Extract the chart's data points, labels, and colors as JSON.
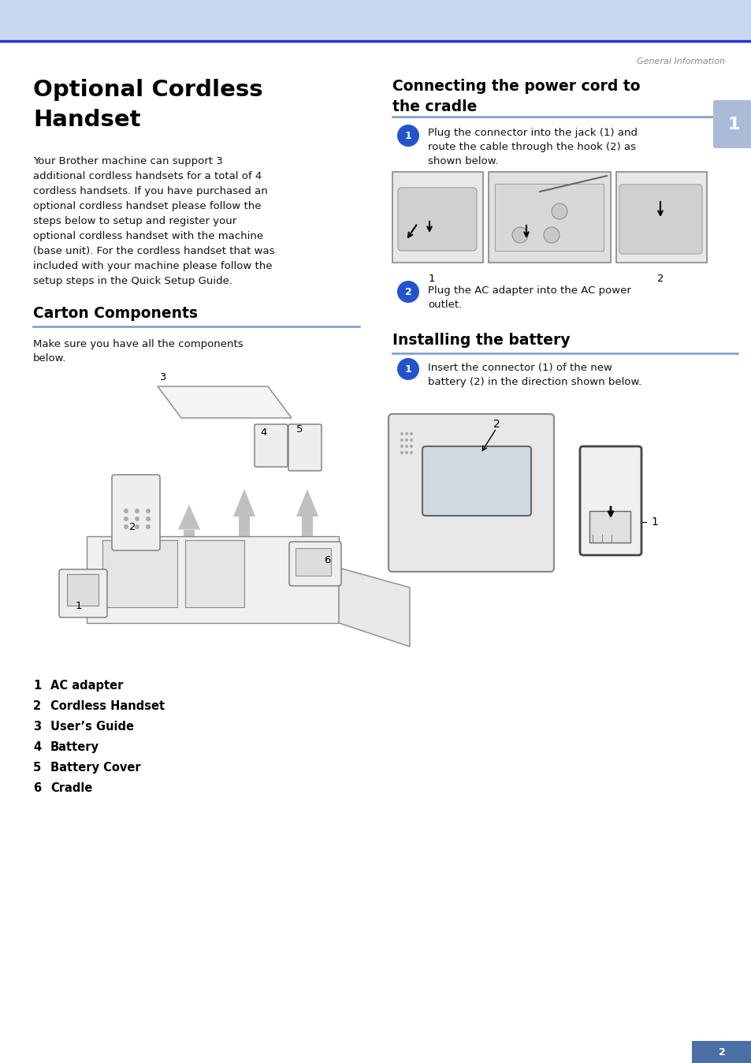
{
  "page_bg": "#ffffff",
  "header_bg": "#c8d8f0",
  "header_line_color": "#2233dd",
  "tab_bg": "#aabbd8",
  "tab_text": "1",
  "top_label": "General Information",
  "top_label_color": "#888888",
  "page_number": "2",
  "page_num_bg": "#4a6fa5",
  "left_title": "Optional Cordless\nHandset",
  "left_body": "Your Brother machine can support 3\nadditional cordless handsets for a total of 4\ncordless handsets. If you have purchased an\noptional cordless handset please follow the\nsteps below to setup and register your\noptional cordless handset with the machine\n(base unit). For the cordless handset that was\nincluded with your machine please follow the\nsetup steps in the Quick Setup Guide.",
  "carton_title": "Carton Components",
  "carton_body": "Make sure you have all the components\nbelow.",
  "carton_items": [
    [
      "1",
      "AC adapter"
    ],
    [
      "2",
      "Cordless Handset"
    ],
    [
      "3",
      "User’s Guide"
    ],
    [
      "4",
      "Battery"
    ],
    [
      "5",
      "Battery Cover"
    ],
    [
      "6",
      "Cradle"
    ]
  ],
  "right_title1": "Connecting the power cord to\nthe cradle",
  "step1_circle": "1",
  "step1_text": "Plug the connector into the jack (1) and\nroute the cable through the hook (2) as\nshown below.",
  "step2_circle": "2",
  "step2_text": "Plug the AC adapter into the AC power\noutlet.",
  "right_title2": "Installing the battery",
  "step3_circle": "1",
  "step3_text": "Insert the connector (1) of the new\nbattery (2) in the direction shown below.",
  "blue_circle_color": "#2255cc",
  "divider_color": "#7799cc",
  "text_color": "#000000",
  "body_color": "#111111",
  "gray_text_color": "#777777"
}
